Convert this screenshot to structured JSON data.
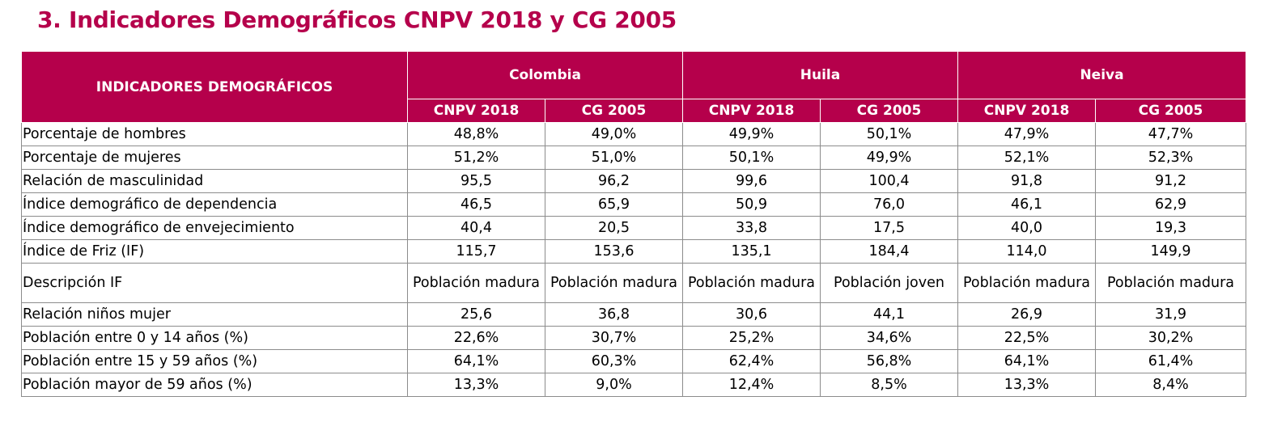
{
  "title": "3. Indicadores Demográficos CNPV 2018 y CG 2005",
  "table": {
    "corner_header": "INDICADORES DEMOGRÁFICOS",
    "groups": [
      "Colombia",
      "Huila",
      "Neiva"
    ],
    "subheaders": [
      "CNPV 2018",
      "CG 2005",
      "CNPV 2018",
      "CG 2005",
      "CNPV 2018",
      "CG 2005"
    ],
    "rows": [
      {
        "label": "Porcentaje de hombres",
        "values": [
          "48,8%",
          "49,0%",
          "49,9%",
          "50,1%",
          "47,9%",
          "47,7%"
        ]
      },
      {
        "label": "Porcentaje de mujeres",
        "values": [
          "51,2%",
          "51,0%",
          "50,1%",
          "49,9%",
          "52,1%",
          "52,3%"
        ]
      },
      {
        "label": "Relación de masculinidad",
        "values": [
          "95,5",
          "96,2",
          "99,6",
          "100,4",
          "91,8",
          "91,2"
        ]
      },
      {
        "label": "Índice demográfico de dependencia",
        "values": [
          "46,5",
          "65,9",
          "50,9",
          "76,0",
          "46,1",
          "62,9"
        ]
      },
      {
        "label": "Índice demográfico de envejecimiento",
        "values": [
          "40,4",
          "20,5",
          "33,8",
          "17,5",
          "40,0",
          "19,3"
        ]
      },
      {
        "label": "Índice de Friz (IF)",
        "values": [
          "115,7",
          "153,6",
          "135,1",
          "184,4",
          "114,0",
          "149,9"
        ]
      },
      {
        "label": "Descripción IF",
        "values": [
          "Población madura",
          "Población madura",
          "Población madura",
          "Población joven",
          "Población madura",
          "Población madura"
        ]
      },
      {
        "label": "Relación niños mujer",
        "values": [
          "25,6",
          "36,8",
          "30,6",
          "44,1",
          "26,9",
          "31,9"
        ]
      },
      {
        "label": "Población entre 0 y 14 años (%)",
        "values": [
          "22,6%",
          "30,7%",
          "25,2%",
          "34,6%",
          "22,5%",
          "30,2%"
        ]
      },
      {
        "label": "Población entre 15 y 59 años (%)",
        "values": [
          "64,1%",
          "60,3%",
          "62,4%",
          "56,8%",
          "64,1%",
          "61,4%"
        ]
      },
      {
        "label": "Población mayor de 59 años (%)",
        "values": [
          "13,3%",
          "9,0%",
          "12,4%",
          "8,5%",
          "13,3%",
          "8,4%"
        ]
      }
    ]
  },
  "colors": {
    "header_bg": "#b5004b",
    "title": "#b5004b",
    "header_text": "#ffffff",
    "grid": "#8c8c8c"
  }
}
